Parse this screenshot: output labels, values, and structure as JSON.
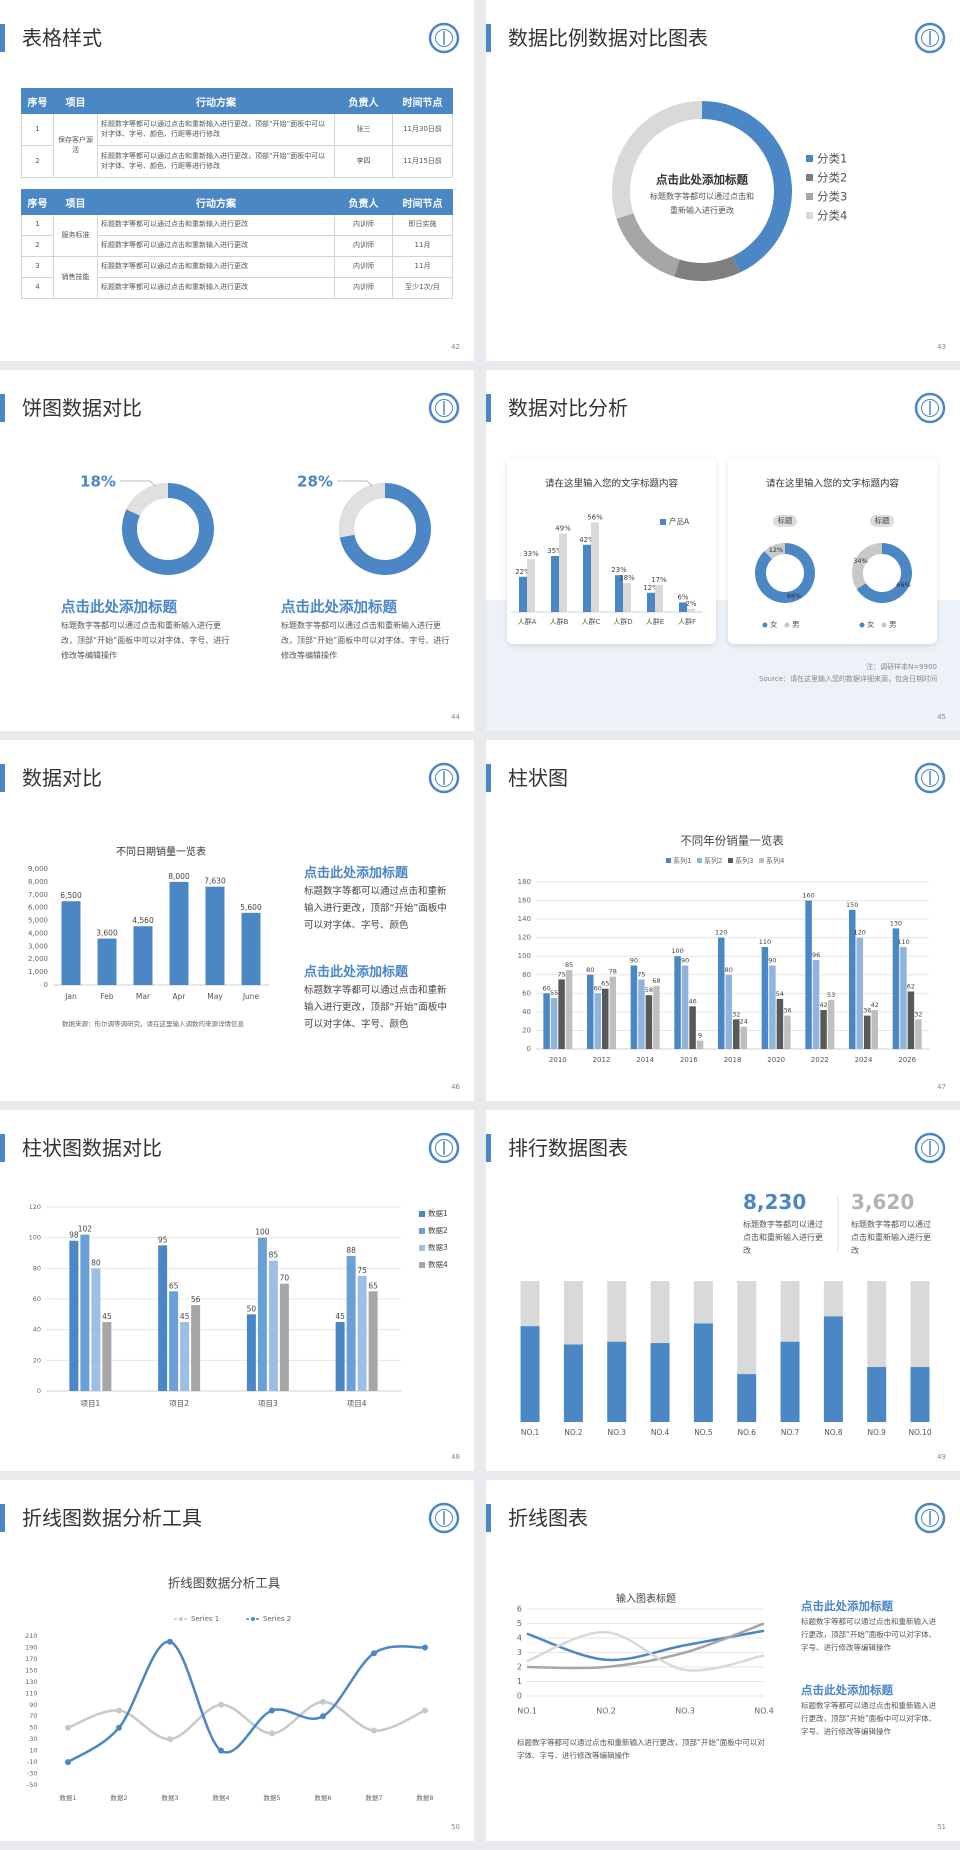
{
  "slides": [
    {
      "title": "表格样式",
      "page": "42",
      "tables": [
        {
          "header": [
            "序号",
            "项目",
            "行动方案",
            "负责人",
            "时间节点"
          ],
          "groups": [
            {
              "item": "保存客户源活",
              "rows": [
                [
                  "1",
                  "标题数字等都可以通过点击和重新输入进行更改，顶部“开始”面板中可以对字体、字号、颜色、行距等进行修改",
                  "张三",
                  "11月30日前"
                ],
                [
                  "2",
                  "标题数字等都可以通过点击和重新输入进行更改，顶部“开始”面板中可以对字体、字号、颜色、行距等进行修改",
                  "李四",
                  "11月15日前"
                ]
              ]
            }
          ]
        },
        {
          "header": [
            "序号",
            "项目",
            "行动方案",
            "负责人",
            "时间节点"
          ],
          "groups": [
            {
              "item": "服务标准",
              "rows": [
                [
                  "1",
                  "标题数字等都可以通过点击和重新输入进行更改",
                  "内训师",
                  "即日实施"
                ],
                [
                  "2",
                  "标题数字等都可以通过点击和重新输入进行更改",
                  "内训师",
                  "11月"
                ]
              ]
            },
            {
              "item": "销售技能",
              "rows": [
                [
                  "3",
                  "标题数字等都可以通过点击和重新输入进行更改",
                  "内训师",
                  "11月"
                ],
                [
                  "4",
                  "标题数字等都可以通过点击和重新输入进行更改",
                  "内训师",
                  "至少1次/月"
                ]
              ]
            }
          ]
        }
      ]
    },
    {
      "title": "数据比例数据对比图表",
      "page": "43",
      "chart": {
        "type": "donut",
        "title": "点击此处添加标题",
        "subtitle": "标题数字等都可以通过点击和重新输入进行更改",
        "categories": [
          "分类1",
          "分类2",
          "分类3",
          "分类4"
        ],
        "values": [
          43,
          12,
          15,
          30
        ],
        "colors": [
          "#4b87c5",
          "#7f7f7f",
          "#a6a6a6",
          "#d9d9d9"
        ]
      }
    },
    {
      "title": "饼图数据对比",
      "page": "44",
      "items": [
        {
          "value": 18,
          "value_label": "18%",
          "heading": "点击此处添加标题",
          "text": "标题数字等都可以通过点击和重新输入进行更改，顶部“开始”面板中可以对字体、字号、进行修改等编辑操作"
        },
        {
          "value": 28,
          "value_label": "28%",
          "heading": "点击此处添加标题",
          "text": "标题数字等都可以通过点击和重新输入进行更改，顶部“开始”面板中可以对字体、字号、进行修改等编辑操作"
        }
      ]
    },
    {
      "title": "数据对比分析",
      "page": "45",
      "cards": [
        {
          "title": "请在这里输入您的文字标题内容",
          "chart": {
            "type": "bar",
            "categories": [
              "人群A",
              "人群B",
              "人群C",
              "人群D",
              "人群E",
              "人群F"
            ],
            "series": [
              {
                "name": "产品A",
                "color": "#4b87c5",
                "values": [
                  22,
                  35,
                  42,
                  23,
                  12,
                  6
                ],
                "value_labels": [
                  "22%",
                  "35%",
                  "42%",
                  "23%",
                  "12%",
                  "6%"
                ]
              },
              {
                "color": "#d9d9d9",
                "values": [
                  33,
                  49,
                  56,
                  18,
                  17,
                  2
                ],
                "value_labels": [
                  "33%",
                  "49%",
                  "56%",
                  "18%",
                  "17%",
                  "2%"
                ]
              }
            ]
          }
        },
        {
          "title": "请在这里输入您的文字标题内容",
          "chart": {
            "type": "donut",
            "legend": [
              {
                "name": "女",
                "color": "#4b87c5"
              },
              {
                "name": "男",
                "color": "#c9c9c9"
              }
            ],
            "donuts": [
              {
                "label": "标题",
                "values": [
                  88,
                  12
                ],
                "value_labels": [
                  "88%",
                  "12%"
                ]
              },
              {
                "label": "标题",
                "values": [
                  66,
                  34
                ],
                "value_labels": [
                  "66%",
                  "34%"
                ]
              }
            ]
          }
        }
      ],
      "notes": [
        "注：调研样本N=9900",
        "Source：请在这里输入您的数据详细来源，包含日期时间"
      ]
    },
    {
      "title": "数据对比",
      "page": "46",
      "chart": {
        "type": "bar",
        "title": "不同日期销量一览表",
        "categories": [
          "Jan",
          "Feb",
          "Mar",
          "Apr",
          "May",
          "June"
        ],
        "values": [
          6500,
          3600,
          4560,
          8000,
          7630,
          5600
        ],
        "value_labels": [
          "6,500",
          "3,600",
          "4,560",
          "8,000",
          "7,630",
          "5,600"
        ],
        "color": "#4b87c5",
        "ylim": [
          0,
          9000
        ],
        "yticks": [
          0,
          {
            "value": 1000,
            "label": "1,000"
          },
          {
            "value": 2000,
            "label": "2,000"
          },
          {
            "value": 3000,
            "label": "3,000"
          },
          {
            "value": 4000,
            "label": "4,000"
          },
          {
            "value": 5000,
            "label": "5,000"
          },
          {
            "value": 6000,
            "label": "6,000"
          },
          {
            "value": 7000,
            "label": "7,000"
          },
          {
            "value": 8000,
            "label": "8,000"
          },
          {
            "value": 9000,
            "label": "9,000"
          }
        ],
        "source": "数据来源：形尔调等调研究，请在这里输入调数的来源详情信息"
      },
      "blocks": [
        {
          "heading": "点击此处添加标题",
          "text": "标题数字等都可以通过点击和重新输入进行更改，顶部“开始”面板中可以对字体、字号、颜色"
        },
        {
          "heading": "点击此处添加标题",
          "text": "标题数字等都可以通过点击和重新输入进行更改，顶部“开始”面板中可以对字体、字号、颜色"
        }
      ]
    },
    {
      "title": "柱状图",
      "page": "47",
      "chart": {
        "type": "bar",
        "title": "不同年份销量一览表",
        "categories": [
          "2010",
          "2012",
          "2014",
          "2016",
          "2018",
          "2020",
          "2022",
          "2024",
          "2026"
        ],
        "series": [
          {
            "name": "系列1",
            "color": "#4b87c5",
            "values": [
              60,
              80,
              90,
              100,
              120,
              110,
              160,
              150,
              130
            ]
          },
          {
            "name": "系列2",
            "color": "#8fb4de",
            "values": [
              55,
              60,
              75,
              90,
              80,
              90,
              96,
              120,
              110
            ]
          },
          {
            "name": "系列3",
            "color": "#595959",
            "values": [
              75,
              65,
              58,
              46,
              32,
              54,
              42,
              36,
              62
            ]
          },
          {
            "name": "系列4",
            "color": "#bfbfbf",
            "values": [
              85,
              78,
              68,
              9,
              24,
              36,
              53,
              42,
              32
            ]
          }
        ],
        "ylim": [
          0,
          180
        ],
        "yticks": [
          0,
          20,
          40,
          60,
          80,
          100,
          120,
          140,
          160,
          180
        ],
        "grid": true
      }
    },
    {
      "title": "柱状图数据对比",
      "page": "48",
      "chart": {
        "type": "bar",
        "categories": [
          "项目1",
          "项目2",
          "项目3",
          "项目4"
        ],
        "series": [
          {
            "name": "数据1",
            "color": "#4b87c5",
            "values": [
              98,
              95,
              50,
              45
            ]
          },
          {
            "name": "数据2",
            "color": "#6a9fd8",
            "values": [
              102,
              65,
              100,
              88
            ]
          },
          {
            "name": "数据3",
            "color": "#9dbfe6",
            "values": [
              80,
              45,
              85,
              75
            ]
          },
          {
            "name": "数据4",
            "color": "#a6a6a6",
            "values": [
              45,
              56,
              70,
              65
            ]
          }
        ],
        "ylim": [
          0,
          120
        ],
        "yticks": [
          0,
          20,
          40,
          60,
          80,
          100,
          120
        ],
        "grid": true
      }
    },
    {
      "title": "排行数据图表",
      "page": "49",
      "stats": [
        {
          "value": "8,230",
          "text": "标题数字等都可以通过点击和重新输入进行更改"
        },
        {
          "value": "3,620",
          "text": "标题数字等都可以通过点击和重新输入进行更改"
        }
      ],
      "chart": {
        "type": "stacked_bar",
        "categories": [
          "NO.1",
          "NO.2",
          "NO.3",
          "NO.4",
          "NO.5",
          "NO.6",
          "NO.7",
          "NO.8",
          "NO.9",
          "NO.10"
        ],
        "series": [
          {
            "color": "#4b87c5",
            "values": [
              68,
              55,
              57,
              56,
              70,
              34,
              57,
              75,
              39,
              39
            ]
          },
          {
            "color": "#d9d9d9",
            "values": [
              32,
              45,
              43,
              44,
              30,
              66,
              43,
              25,
              61,
              61
            ]
          }
        ]
      }
    },
    {
      "title": "折线图数据分析工具",
      "page": "50",
      "chart": {
        "type": "line",
        "title": "折线图数据分析工具",
        "categories": [
          "数据1",
          "数据2",
          "数据3",
          "数据4",
          "数据5",
          "数据6",
          "数据7",
          "数据8"
        ],
        "series": [
          {
            "name": "Series 1",
            "color": "#c9c9c9",
            "values": [
              50,
              80,
              30,
              90,
              40,
              95,
              45,
              80
            ]
          },
          {
            "name": "Series 2",
            "color": "#4b87c5",
            "values": [
              -10,
              50,
              200,
              10,
              80,
              70,
              180,
              190
            ]
          }
        ],
        "ylim": [
          -50,
          210
        ],
        "yticks": [
          -50,
          -30,
          -10,
          10,
          30,
          50,
          70,
          90,
          110,
          130,
          150,
          170,
          190,
          210
        ],
        "smooth": true
      }
    },
    {
      "title": "折线图表",
      "page": "51",
      "chart": {
        "type": "line",
        "title": "输入图表标题",
        "categories": [
          "NO.1",
          "NO.2",
          "NO.3",
          "NO.4"
        ],
        "series": [
          {
            "color": "#4b87c5",
            "values": [
              4.3,
              2.5,
              3.5,
              4.5
            ]
          },
          {
            "color": "#a6a6a6",
            "values": [
              2.0,
              2.0,
              3.0,
              5.0
            ]
          },
          {
            "color": "#d9d9d9",
            "values": [
              2.4,
              4.4,
              1.8,
              2.8
            ]
          }
        ],
        "ylim": [
          0,
          6
        ],
        "yticks": [
          0,
          1,
          2,
          3,
          4,
          5,
          6
        ],
        "grid": true,
        "smooth": true
      },
      "blocks": [
        {
          "heading": "点击此处添加标题",
          "text": "标题数字等都可以通过点击和重新输入进行更改，顶部“开始”面板中可以对字体、字号、进行修改等编辑操作"
        },
        {
          "heading": "点击此处添加标题",
          "text": "标题数字等都可以通过点击和重新输入进行更改，顶部“开始”面板中可以对字体、字号、进行修改等编辑操作"
        }
      ],
      "note": "标题数字等都可以通过点击和重新输入进行更改，顶部“开始”面板中可以对字体、字号、进行修改等编辑操作"
    }
  ]
}
